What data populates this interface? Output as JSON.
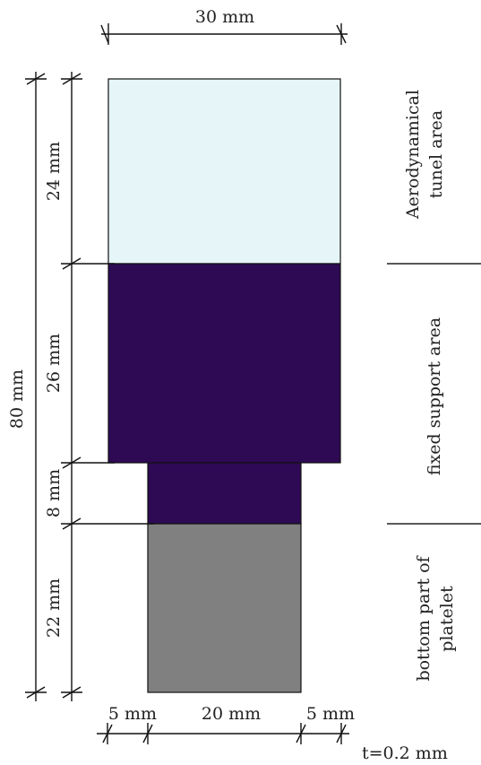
{
  "regions": [
    {
      "id": "aero",
      "color": "#e6f6f8"
    },
    {
      "id": "fixed-upper",
      "color": "#2e0a55"
    },
    {
      "id": "fixed-lower",
      "color": "#2e0a55"
    },
    {
      "id": "bottom",
      "color": "#808080"
    }
  ],
  "dimensions": {
    "top_width": "30 mm",
    "total_height": "80 mm",
    "seg_24": "24 mm",
    "seg_26": "26 mm",
    "seg_8": "8 mm",
    "seg_22": "22 mm",
    "bottom_left": "5 mm",
    "bottom_middle": "20 mm",
    "bottom_right": "5 mm"
  },
  "area_labels": {
    "aero_line1": "Aerodynamical",
    "aero_line2": "tunel area",
    "fixed": "fixed support area",
    "bottom_line1": "bottom part of",
    "bottom_line2": "platelet"
  },
  "thickness": "t=0.2 mm"
}
